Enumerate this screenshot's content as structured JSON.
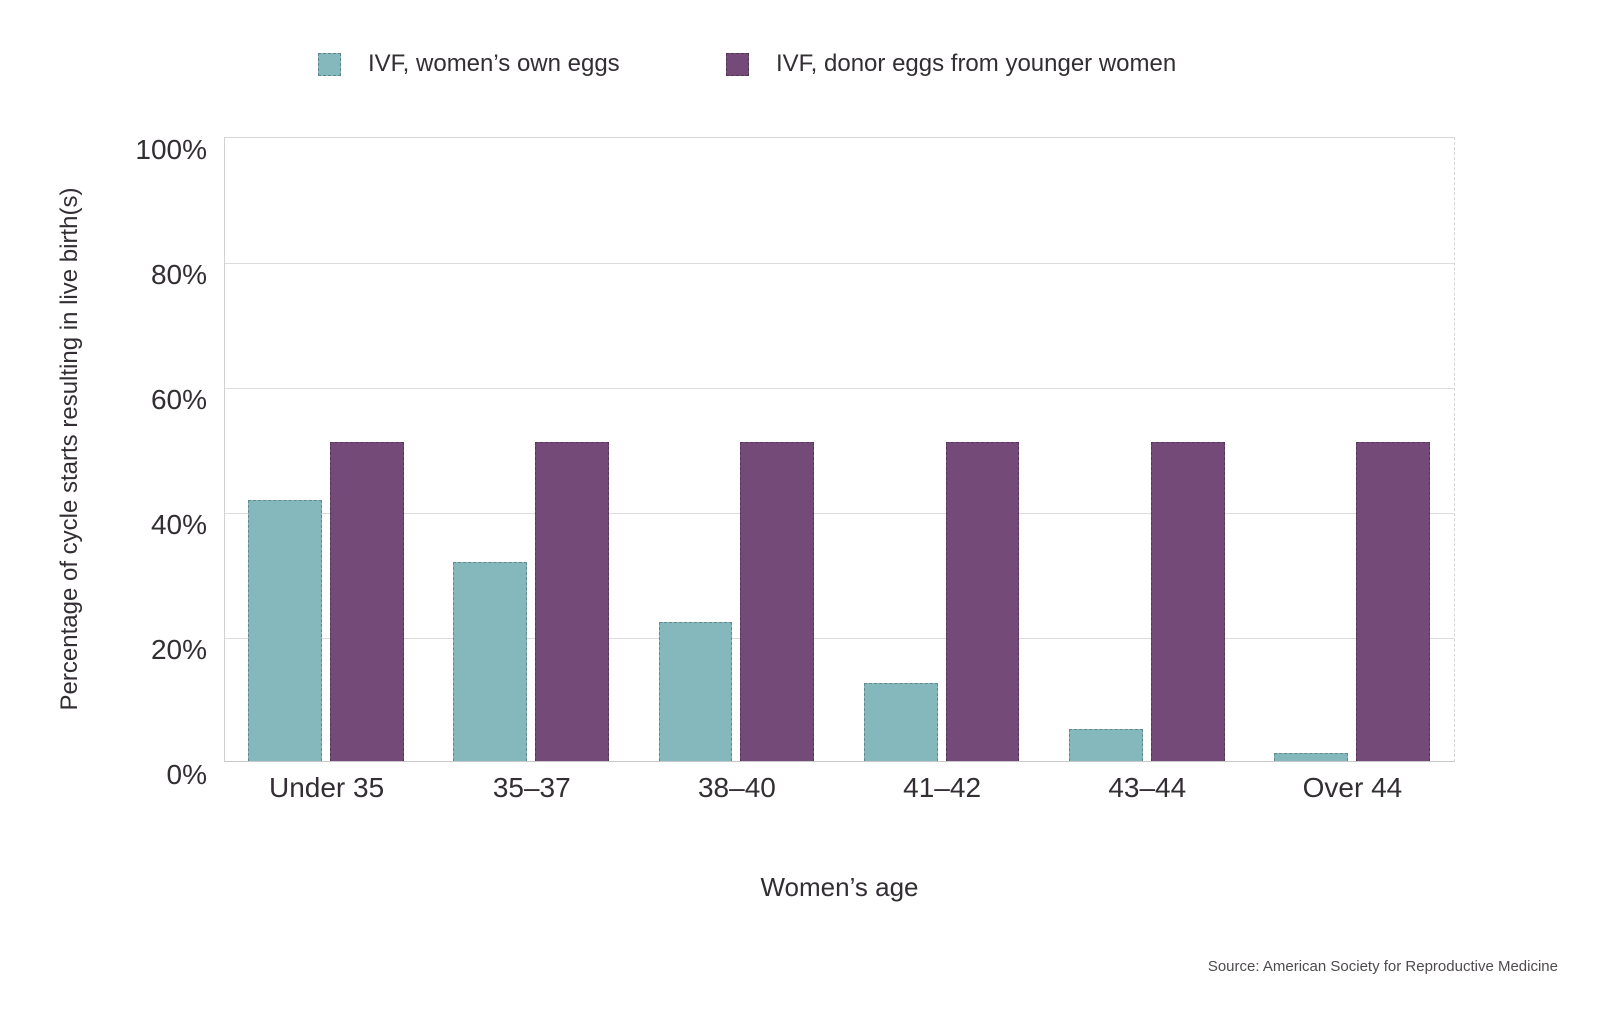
{
  "legend": {
    "items": [
      {
        "key": "own-eggs",
        "label": "IVF, women’s own eggs",
        "color": "#85b8bc"
      },
      {
        "key": "donor-eggs",
        "label": "IVF, donor eggs from younger women",
        "color": "#744a78"
      }
    ]
  },
  "chart_data": {
    "type": "bar",
    "title": "",
    "categories": [
      "Under 35",
      "35–37",
      "38–40",
      "41–42",
      "43–44",
      "Over 44"
    ],
    "series": [
      {
        "name": "IVF, women’s own eggs",
        "color": "#85b8bc",
        "values": [
          41.8,
          31.8,
          22.2,
          12.5,
          5.2,
          1.3
        ]
      },
      {
        "name": "IVF, donor eggs from younger women",
        "color": "#744a78",
        "values": [
          51.1,
          51.1,
          51.1,
          51.1,
          51.1,
          51.1
        ]
      }
    ],
    "xlabel": "Women’s age",
    "ylabel": "Percentage of cycle starts resulting in live birth(s)",
    "ylim": [
      0,
      100
    ],
    "yticks": [
      {
        "value": 0,
        "label": "0%"
      },
      {
        "value": 20,
        "label": "20%"
      },
      {
        "value": 40,
        "label": "40%"
      },
      {
        "value": 60,
        "label": "60%"
      },
      {
        "value": 80,
        "label": "80%"
      },
      {
        "value": 100,
        "label": "100%"
      }
    ],
    "grid": true,
    "legend_position": "top"
  },
  "source": "Source: American Society for Reproductive Medicine"
}
